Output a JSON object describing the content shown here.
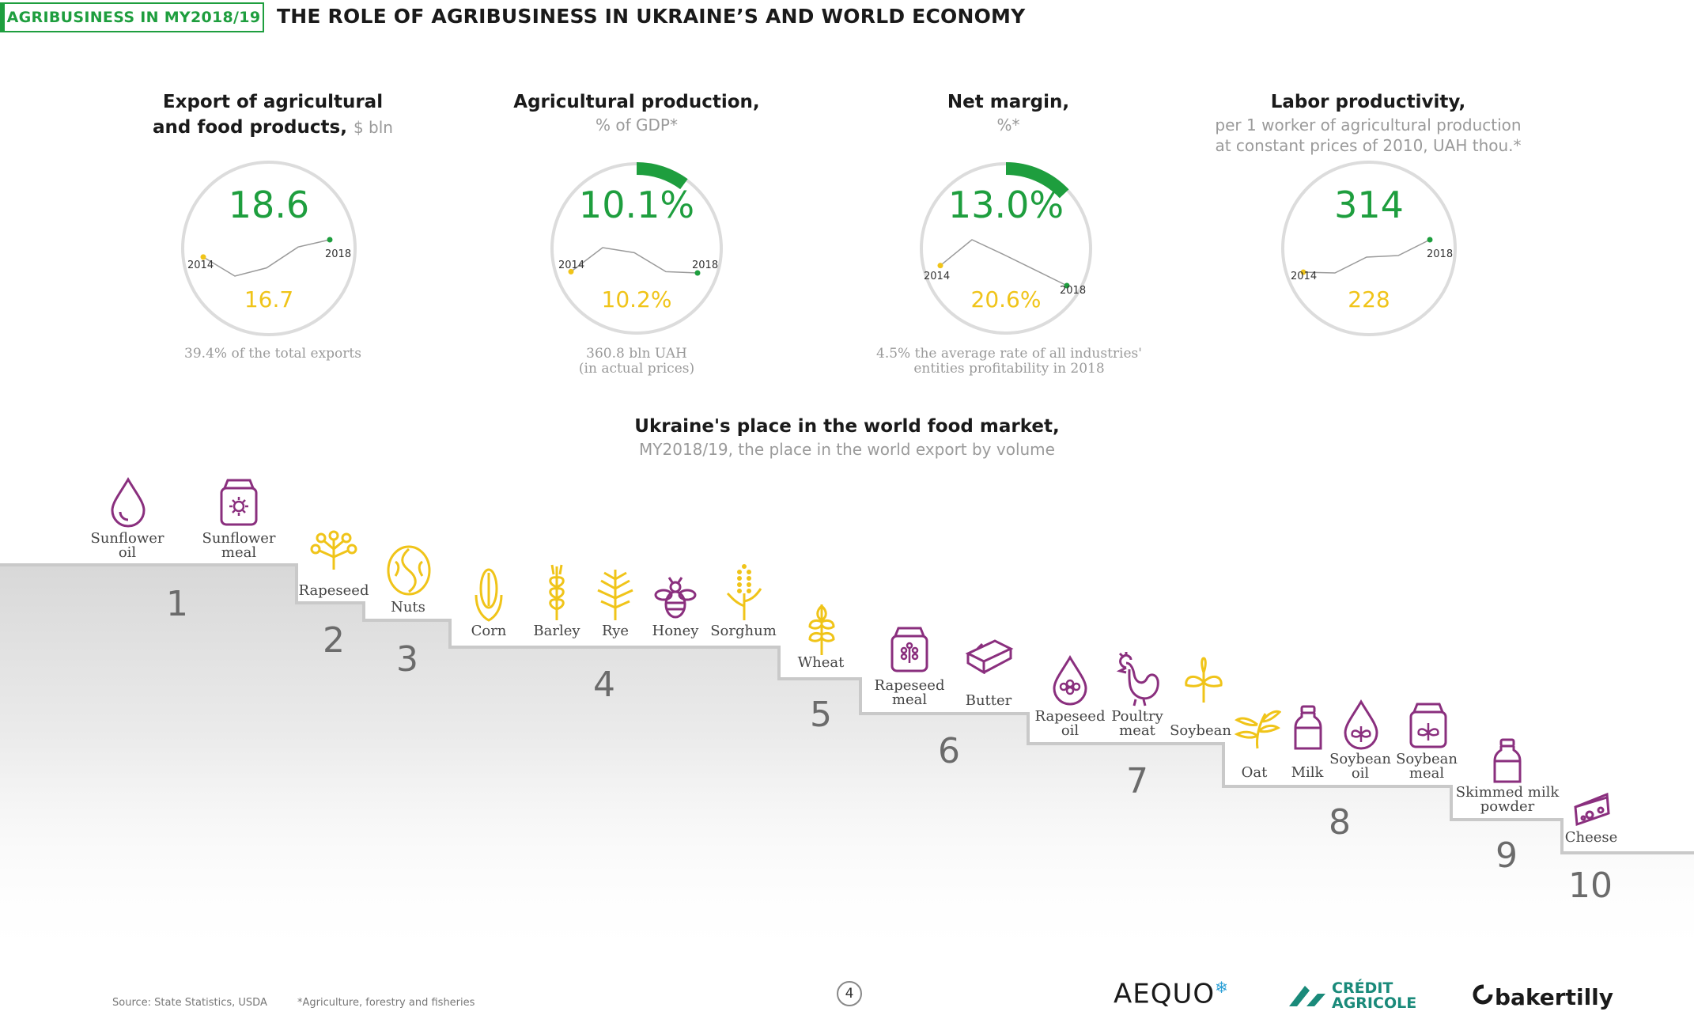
{
  "header": {
    "tag": "AGRIBUSINESS IN MY2018/19",
    "title": "THE ROLE OF AGRIBUSINESS IN UKRAINE’S AND WORLD ECONOMY"
  },
  "kpis": [
    {
      "title_line1": "Export of agricultural",
      "title_line2": "and food products,",
      "unit": "$ bln",
      "value": "18.6",
      "prev_value": "16.7",
      "year_start": "2014",
      "year_end": "2018",
      "note_line1": "39.4% of the total exports",
      "note_line2": "",
      "trend": [
        16.7,
        14.6,
        15.5,
        17.8,
        18.6
      ]
    },
    {
      "title_line1": "Agricultural production,",
      "subtitle_line1": "% of GDP*",
      "value": "10.1%",
      "prev_value": "10.2%",
      "year_start": "2014",
      "year_end": "2018",
      "note_line1": "360.8 bln UAH",
      "note_line2": "(in actual prices)",
      "trend": [
        10.2,
        12.1,
        11.7,
        10.2,
        10.1
      ],
      "gauge_fraction": 0.101
    },
    {
      "title_line1": "Net margin,",
      "subtitle_line1": "%*",
      "value": "13.0%",
      "prev_value": "20.6%",
      "year_start": "2014",
      "year_end": "2018",
      "note_line1": "4.5% the average rate of all industries'",
      "note_line2": "entities profitability in 2018",
      "trend": [
        20.6,
        30.4,
        24.8,
        18.9,
        13.0
      ],
      "gauge_fraction": 0.13
    },
    {
      "title_line1": "Labor productivity,",
      "subtitle_line1": "per 1 worker of agricultural production",
      "subtitle_line2": "at constant prices of 2010, UAH thou.*",
      "value": "314",
      "prev_value": "228",
      "year_start": "2014",
      "year_end": "2018",
      "trend": [
        228,
        226,
        268,
        272,
        314
      ]
    }
  ],
  "market": {
    "title": "Ukraine's place in the world food market,",
    "subtitle": "MY2018/19, the place in the world export by volume",
    "ranks": [
      {
        "rank": "1",
        "items": [
          "Sunflower oil",
          "Sunflower meal"
        ]
      },
      {
        "rank": "2",
        "items": [
          "Rapeseed"
        ]
      },
      {
        "rank": "3",
        "items": [
          "Nuts"
        ]
      },
      {
        "rank": "4",
        "items": [
          "Corn",
          "Barley",
          "Rye",
          "Honey",
          "Sorghum"
        ]
      },
      {
        "rank": "5",
        "items": [
          "Wheat"
        ]
      },
      {
        "rank": "6",
        "items": [
          "Rapeseed meal",
          "Butter"
        ]
      },
      {
        "rank": "7",
        "items": [
          "Rapeseed oil",
          "Poultry meat",
          "Soybean"
        ]
      },
      {
        "rank": "8",
        "items": [
          "Oat",
          "Milk",
          "Soybean oil",
          "Soybean meal"
        ]
      },
      {
        "rank": "9",
        "items": [
          "Skimmed milk powder"
        ]
      },
      {
        "rank": "10",
        "items": [
          "Cheese"
        ]
      }
    ]
  },
  "labels": {
    "sunflower_oil": [
      "Sunflower",
      "oil"
    ],
    "sunflower_meal": [
      "Sunflower",
      "meal"
    ],
    "rapeseed": [
      "Rapeseed"
    ],
    "nuts": [
      "Nuts"
    ],
    "corn": [
      "Corn"
    ],
    "barley": [
      "Barley"
    ],
    "rye": [
      "Rye"
    ],
    "honey": [
      "Honey"
    ],
    "sorghum": [
      "Sorghum"
    ],
    "wheat": [
      "Wheat"
    ],
    "rapeseed_meal": [
      "Rapeseed",
      "meal"
    ],
    "butter": [
      "Butter"
    ],
    "rapeseed_oil": [
      "Rapeseed",
      "oil"
    ],
    "poultry_meat": [
      "Poultry",
      "meat"
    ],
    "soybean": [
      "Soybean"
    ],
    "oat": [
      "Oat"
    ],
    "milk": [
      "Milk"
    ],
    "soybean_oil": [
      "Soybean",
      "oil"
    ],
    "soybean_meal": [
      "Soybean",
      "meal"
    ],
    "skimmed_milk_powder": [
      "Skimmed milk",
      "powder"
    ],
    "cheese": [
      "Cheese"
    ]
  },
  "colors": {
    "green": "#1e9e3e",
    "yellow": "#f0c419",
    "purple": "#8a2f7e",
    "grey": "#9a9a9a"
  },
  "footer": {
    "source": "Source: State Statistics, USDA",
    "footnote": "*Agriculture, forestry and fisheries",
    "page": "4",
    "logos": {
      "aequo": "AEQUO",
      "ca_line1": "CRÉDIT",
      "ca_line2": "AGRICOLE",
      "bakertilly": "bakertilly"
    }
  }
}
